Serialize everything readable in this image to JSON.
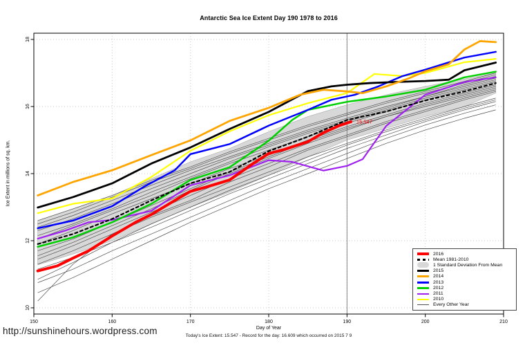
{
  "footer": {
    "url": "http://sunshinehours.wordpress.com"
  },
  "chart_data": {
    "type": "line",
    "title": "Antarctic Sea Ice Extent Day 190 1978 to 2016",
    "xlabel": "Day of Year",
    "ylabel": "Ice Extent in millions of sq. km.",
    "footnote": "Today's Ice Extent: 15.547  - Record for the day: 16.609 which occurred on 2015 7 9",
    "x_ticks": [
      150,
      160,
      170,
      180,
      190,
      200,
      210
    ],
    "y_ticks": [
      10,
      12,
      14,
      16,
      18
    ],
    "xlim": [
      150,
      210
    ],
    "ylim": [
      9.8,
      18.2
    ],
    "grid": true,
    "legend_position": "bottom-right",
    "vline_x": 190,
    "annotation": {
      "text": "15.547",
      "x": 191.2,
      "y": 15.55,
      "color": "#ff0000"
    },
    "band": {
      "label": "1 Standard Deviation From Mean",
      "color": "#d8d8d8",
      "days": [
        150.5,
        155,
        160,
        165,
        170,
        175,
        180,
        185,
        190,
        195,
        200,
        205,
        209
      ],
      "upper": [
        12.6,
        12.95,
        13.35,
        13.85,
        14.35,
        14.75,
        15.25,
        15.7,
        16.05,
        16.35,
        16.6,
        16.82,
        17.0
      ],
      "lower": [
        11.28,
        11.6,
        12.0,
        12.5,
        13.0,
        13.45,
        13.95,
        14.5,
        15.0,
        15.35,
        15.7,
        16.0,
        16.4
      ]
    },
    "series": [
      {
        "name": "2010",
        "color": "#ffff00",
        "width": 2.2,
        "days": [
          150.5,
          155,
          160,
          165,
          170,
          175,
          180,
          185,
          190,
          193.5,
          197,
          200,
          205,
          209
        ],
        "values": [
          12.82,
          13.1,
          13.26,
          13.9,
          14.68,
          15.26,
          15.74,
          16.1,
          16.4,
          16.97,
          16.91,
          17.0,
          17.32,
          17.42
        ]
      },
      {
        "name": "2011",
        "color": "#a020f0",
        "width": 2.2,
        "days": [
          150.5,
          154,
          157,
          160,
          165,
          170,
          175,
          180,
          183,
          187,
          190,
          192,
          195,
          200,
          205,
          209
        ],
        "values": [
          12.06,
          12.3,
          12.55,
          12.62,
          12.89,
          13.65,
          13.95,
          14.4,
          14.35,
          14.09,
          14.23,
          14.43,
          15.42,
          16.35,
          16.73,
          16.87
        ]
      },
      {
        "name": "2012",
        "color": "#00d000",
        "width": 2.5,
        "days": [
          150.5,
          155,
          160,
          165,
          170,
          175,
          180,
          183,
          185,
          190,
          195,
          200,
          205,
          209
        ],
        "values": [
          11.82,
          12.1,
          12.55,
          13.1,
          13.81,
          14.19,
          14.98,
          15.6,
          15.9,
          16.14,
          16.3,
          16.5,
          16.87,
          17.04
        ]
      },
      {
        "name": "2013",
        "color": "#0000ff",
        "width": 2.5,
        "days": [
          150.5,
          155,
          160,
          164,
          168,
          170,
          175,
          180,
          185,
          188,
          191,
          194,
          197,
          200,
          205,
          209
        ],
        "values": [
          12.37,
          12.6,
          13.03,
          13.6,
          14.1,
          14.58,
          14.88,
          15.43,
          15.9,
          16.2,
          16.35,
          16.6,
          16.9,
          17.1,
          17.46,
          17.63
        ]
      },
      {
        "name": "2015",
        "color": "#000000",
        "width": 2.8,
        "days": [
          150.5,
          155,
          160,
          165,
          170,
          175,
          180,
          185,
          188,
          190,
          193,
          196,
          200,
          203,
          205,
          209
        ],
        "values": [
          12.99,
          13.3,
          13.71,
          14.3,
          14.78,
          15.33,
          15.84,
          16.46,
          16.6,
          16.65,
          16.7,
          16.73,
          16.76,
          16.8,
          17.08,
          17.31
        ]
      },
      {
        "name": "2014",
        "color": "#ffa500",
        "width": 2.8,
        "days": [
          150.5,
          155,
          160,
          165,
          170,
          175,
          180,
          184,
          187,
          190,
          192,
          195,
          198,
          200,
          203,
          205,
          207,
          209
        ],
        "values": [
          13.35,
          13.75,
          14.1,
          14.55,
          14.99,
          15.57,
          15.96,
          16.35,
          16.5,
          16.45,
          16.4,
          16.6,
          16.85,
          17.05,
          17.26,
          17.7,
          17.95,
          17.92
        ]
      },
      {
        "name": "mean-1981-2010",
        "color": "#000000",
        "width": 2.2,
        "dash": "4,4",
        "days": [
          150.5,
          155,
          160,
          165,
          170,
          175,
          180,
          185,
          190,
          195,
          200,
          205,
          209
        ],
        "values": [
          11.9,
          12.2,
          12.65,
          13.2,
          13.71,
          14.05,
          14.67,
          15.1,
          15.6,
          15.85,
          16.18,
          16.45,
          16.7
        ]
      },
      {
        "name": "2016",
        "color": "#ff0000",
        "width": 4,
        "days": [
          150.5,
          153,
          155,
          157,
          160,
          163,
          165,
          168,
          170,
          172,
          175,
          178,
          180,
          182,
          185,
          187,
          189,
          190.5
        ],
        "values": [
          11.1,
          11.25,
          11.48,
          11.7,
          12.14,
          12.55,
          12.78,
          13.2,
          13.47,
          13.6,
          13.81,
          14.3,
          14.6,
          14.72,
          14.95,
          15.22,
          15.43,
          15.547
        ]
      }
    ],
    "other_years": {
      "label": "Every Other Year",
      "color": "#4f4f4f",
      "days": [
        150.5,
        155,
        160,
        165,
        170,
        175,
        180,
        185,
        190,
        195,
        200,
        205,
        209
      ],
      "lines": [
        [
          11.55,
          11.95,
          12.45,
          12.95,
          13.5,
          14.0,
          14.45,
          14.9,
          15.3,
          15.7,
          16.05,
          16.35,
          16.6
        ],
        [
          11.3,
          11.7,
          12.2,
          12.75,
          13.2,
          13.75,
          14.2,
          14.7,
          15.1,
          15.5,
          15.85,
          16.2,
          16.45
        ],
        [
          12.4,
          12.75,
          13.2,
          13.65,
          14.1,
          14.5,
          14.9,
          15.3,
          15.65,
          16.0,
          16.3,
          16.6,
          16.85
        ],
        [
          12.15,
          12.5,
          12.95,
          13.45,
          13.9,
          14.35,
          14.8,
          15.2,
          15.55,
          15.9,
          16.25,
          16.55,
          16.8
        ],
        [
          11.9,
          12.3,
          12.8,
          13.25,
          13.7,
          14.15,
          14.55,
          15.0,
          15.4,
          15.75,
          16.1,
          16.4,
          16.65
        ],
        [
          12.6,
          12.95,
          13.35,
          13.8,
          14.2,
          14.65,
          15.05,
          15.45,
          15.8,
          16.15,
          16.45,
          16.75,
          17.0
        ],
        [
          11.7,
          12.05,
          12.55,
          13.05,
          13.55,
          14.05,
          14.5,
          14.95,
          15.35,
          15.7,
          16.0,
          16.3,
          16.55
        ],
        [
          12.05,
          12.45,
          12.9,
          13.35,
          13.85,
          14.3,
          14.7,
          15.1,
          15.5,
          15.85,
          16.2,
          16.5,
          16.75
        ],
        [
          11.45,
          11.85,
          12.35,
          12.85,
          13.35,
          13.85,
          14.3,
          14.75,
          15.15,
          15.55,
          15.9,
          16.25,
          16.5
        ],
        [
          12.3,
          12.65,
          13.1,
          13.55,
          14.0,
          14.45,
          14.85,
          15.25,
          15.6,
          15.95,
          16.3,
          16.65,
          16.9
        ],
        [
          10.85,
          11.35,
          11.95,
          12.5,
          13.0,
          13.5,
          13.95,
          14.4,
          14.85,
          15.25,
          15.6,
          15.95,
          16.2
        ],
        [
          10.75,
          11.15,
          11.7,
          12.2,
          12.7,
          13.2,
          13.7,
          14.15,
          14.6,
          15.05,
          15.45,
          15.8,
          16.05
        ],
        [
          10.45,
          10.9,
          11.45,
          12.0,
          12.55,
          13.05,
          13.55,
          14.0,
          14.45,
          14.9,
          15.3,
          15.65,
          15.9
        ],
        [
          10.2,
          11.3,
          12.2,
          12.7,
          13.15,
          13.6,
          14.05,
          14.5,
          14.9,
          15.3,
          15.65,
          16.0,
          16.25
        ],
        [
          11.15,
          11.5,
          11.95,
          12.4,
          12.9,
          13.4,
          13.85,
          14.3,
          14.75,
          15.15,
          15.55,
          15.9,
          16.15
        ],
        [
          12.5,
          12.85,
          13.3,
          13.75,
          14.15,
          14.6,
          15.0,
          15.4,
          15.75,
          16.1,
          16.4,
          16.7,
          16.95
        ]
      ]
    },
    "legend": [
      {
        "label": "2016",
        "color": "#ff0000",
        "lw": 4,
        "kind": "line"
      },
      {
        "label": "Mean 1981-2010",
        "color": "#000000",
        "lw": 3,
        "kind": "dashed"
      },
      {
        "label": "1 Standard Deviation From Mean",
        "color": "#d8d8d8",
        "lw": 8,
        "kind": "band"
      },
      {
        "label": "2015",
        "color": "#000000",
        "lw": 3,
        "kind": "line"
      },
      {
        "label": "2014",
        "color": "#ffa500",
        "lw": 3,
        "kind": "line"
      },
      {
        "label": "2013",
        "color": "#0000ff",
        "lw": 3,
        "kind": "line"
      },
      {
        "label": "2012",
        "color": "#00d000",
        "lw": 3,
        "kind": "line"
      },
      {
        "label": "2011",
        "color": "#a020f0",
        "lw": 2,
        "kind": "line"
      },
      {
        "label": "2010",
        "color": "#ffff00",
        "lw": 2,
        "kind": "line"
      },
      {
        "label": "Every Other Year",
        "color": "#4f4f4f",
        "lw": 1,
        "kind": "line"
      }
    ]
  }
}
